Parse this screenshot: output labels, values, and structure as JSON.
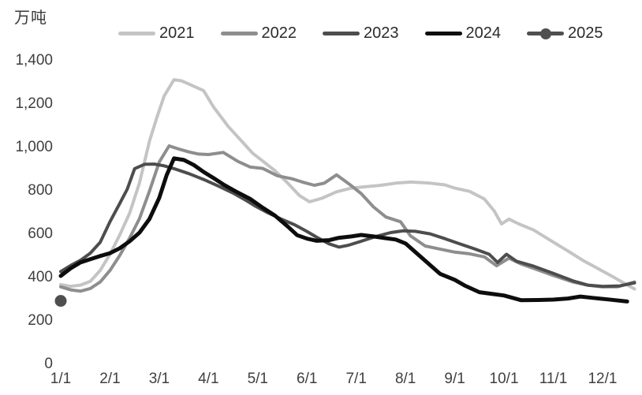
{
  "page": {
    "background": "#ffffff",
    "text_color": "#3a3a3a"
  },
  "chart_data": {
    "type": "line",
    "title": "",
    "unit_label": "万吨",
    "grid": false,
    "legend_position": "top",
    "x_unit": "month_of_year (1 = 1/1, decimals = fraction of month)",
    "x_axis": {
      "ticks": [
        "1/1",
        "2/1",
        "3/1",
        "4/1",
        "5/1",
        "6/1",
        "7/1",
        "8/1",
        "9/1",
        "10/1",
        "11/1",
        "12/1"
      ]
    },
    "y_axis": {
      "range": [
        0,
        1400
      ],
      "ticks": [
        {
          "value": 0,
          "label": "0"
        },
        {
          "value": 200,
          "label": "200"
        },
        {
          "value": 400,
          "label": "400"
        },
        {
          "value": 600,
          "label": "600"
        },
        {
          "value": 800,
          "label": "800"
        },
        {
          "value": 1000,
          "label": "1,000"
        },
        {
          "value": 1200,
          "label": "1,200"
        },
        {
          "value": 1400,
          "label": "1,400"
        }
      ]
    },
    "series": [
      {
        "name": "2021",
        "color": "#c4c4c4",
        "line_width": 4,
        "marker": "none",
        "points": [
          [
            1,
            360
          ],
          [
            1.2,
            352
          ],
          [
            1.4,
            358
          ],
          [
            1.6,
            375
          ],
          [
            1.8,
            425
          ],
          [
            2,
            500
          ],
          [
            2.2,
            590
          ],
          [
            2.4,
            690
          ],
          [
            2.6,
            830
          ],
          [
            2.8,
            1020
          ],
          [
            2.95,
            1130
          ],
          [
            3.1,
            1230
          ],
          [
            3.3,
            1305
          ],
          [
            3.45,
            1300
          ],
          [
            3.6,
            1285
          ],
          [
            3.9,
            1255
          ],
          [
            4.1,
            1180
          ],
          [
            4.4,
            1090
          ],
          [
            4.7,
            1015
          ],
          [
            4.9,
            965
          ],
          [
            5.1,
            930
          ],
          [
            5.35,
            885
          ],
          [
            5.6,
            830
          ],
          [
            5.85,
            770
          ],
          [
            6.05,
            742
          ],
          [
            6.3,
            758
          ],
          [
            6.6,
            788
          ],
          [
            6.9,
            805
          ],
          [
            7.2,
            812
          ],
          [
            7.5,
            818
          ],
          [
            7.8,
            828
          ],
          [
            8.1,
            833
          ],
          [
            8.5,
            828
          ],
          [
            8.8,
            820
          ],
          [
            9,
            805
          ],
          [
            9.3,
            790
          ],
          [
            9.6,
            755
          ],
          [
            9.8,
            700
          ],
          [
            9.95,
            640
          ],
          [
            10.1,
            662
          ],
          [
            10.3,
            640
          ],
          [
            10.6,
            612
          ],
          [
            11,
            556
          ],
          [
            11.3,
            515
          ],
          [
            11.6,
            472
          ],
          [
            11.9,
            435
          ],
          [
            12.2,
            398
          ],
          [
            12.45,
            365
          ],
          [
            12.65,
            340
          ]
        ]
      },
      {
        "name": "2022",
        "color": "#8e8e8e",
        "line_width": 4,
        "marker": "none",
        "points": [
          [
            1,
            350
          ],
          [
            1.2,
            336
          ],
          [
            1.4,
            330
          ],
          [
            1.6,
            342
          ],
          [
            1.8,
            372
          ],
          [
            2,
            425
          ],
          [
            2.2,
            495
          ],
          [
            2.4,
            575
          ],
          [
            2.6,
            665
          ],
          [
            2.8,
            790
          ],
          [
            3,
            925
          ],
          [
            3.2,
            1000
          ],
          [
            3.4,
            985
          ],
          [
            3.6,
            972
          ],
          [
            3.8,
            962
          ],
          [
            4,
            960
          ],
          [
            4.3,
            970
          ],
          [
            4.6,
            928
          ],
          [
            4.85,
            902
          ],
          [
            5.1,
            896
          ],
          [
            5.4,
            862
          ],
          [
            5.7,
            848
          ],
          [
            5.95,
            830
          ],
          [
            6.15,
            818
          ],
          [
            6.35,
            828
          ],
          [
            6.6,
            866
          ],
          [
            6.85,
            825
          ],
          [
            7.1,
            780
          ],
          [
            7.35,
            718
          ],
          [
            7.6,
            672
          ],
          [
            7.9,
            650
          ],
          [
            8.1,
            585
          ],
          [
            8.4,
            538
          ],
          [
            8.7,
            524
          ],
          [
            9,
            510
          ],
          [
            9.3,
            502
          ],
          [
            9.6,
            488
          ],
          [
            9.85,
            447
          ],
          [
            10.1,
            482
          ],
          [
            10.35,
            455
          ],
          [
            10.6,
            435
          ],
          [
            11,
            402
          ],
          [
            11.4,
            372
          ],
          [
            11.7,
            357
          ],
          [
            12,
            350
          ],
          [
            12.3,
            350
          ],
          [
            12.65,
            372
          ]
        ]
      },
      {
        "name": "2023",
        "color": "#4d4d4d",
        "line_width": 4,
        "marker": "none",
        "points": [
          [
            1,
            420
          ],
          [
            1.2,
            448
          ],
          [
            1.4,
            472
          ],
          [
            1.6,
            505
          ],
          [
            1.8,
            555
          ],
          [
            2,
            650
          ],
          [
            2.2,
            735
          ],
          [
            2.35,
            800
          ],
          [
            2.5,
            895
          ],
          [
            2.7,
            915
          ],
          [
            2.9,
            916
          ],
          [
            3.1,
            908
          ],
          [
            3.3,
            895
          ],
          [
            3.6,
            872
          ],
          [
            3.9,
            845
          ],
          [
            4.2,
            815
          ],
          [
            4.5,
            782
          ],
          [
            4.75,
            750
          ],
          [
            4.95,
            722
          ],
          [
            5.2,
            692
          ],
          [
            5.5,
            660
          ],
          [
            5.75,
            636
          ],
          [
            6,
            605
          ],
          [
            6.2,
            578
          ],
          [
            6.45,
            548
          ],
          [
            6.65,
            533
          ],
          [
            6.85,
            542
          ],
          [
            7.1,
            560
          ],
          [
            7.4,
            582
          ],
          [
            7.7,
            600
          ],
          [
            7.95,
            608
          ],
          [
            8.2,
            606
          ],
          [
            8.5,
            594
          ],
          [
            8.8,
            572
          ],
          [
            9.1,
            548
          ],
          [
            9.4,
            525
          ],
          [
            9.7,
            500
          ],
          [
            9.87,
            462
          ],
          [
            10.05,
            500
          ],
          [
            10.25,
            468
          ],
          [
            10.6,
            445
          ],
          [
            11,
            412
          ],
          [
            11.4,
            377
          ],
          [
            11.7,
            358
          ],
          [
            12,
            352
          ],
          [
            12.35,
            354
          ],
          [
            12.65,
            368
          ]
        ]
      },
      {
        "name": "2024",
        "color": "#0d0d0d",
        "line_width": 5,
        "marker": "none",
        "points": [
          [
            1,
            400
          ],
          [
            1.2,
            435
          ],
          [
            1.4,
            462
          ],
          [
            1.6,
            477
          ],
          [
            1.8,
            492
          ],
          [
            2,
            505
          ],
          [
            2.2,
            528
          ],
          [
            2.4,
            560
          ],
          [
            2.6,
            600
          ],
          [
            2.8,
            662
          ],
          [
            3,
            760
          ],
          [
            3.15,
            865
          ],
          [
            3.3,
            942
          ],
          [
            3.5,
            935
          ],
          [
            3.7,
            912
          ],
          [
            3.9,
            880
          ],
          [
            4.1,
            852
          ],
          [
            4.3,
            822
          ],
          [
            4.55,
            790
          ],
          [
            4.85,
            755
          ],
          [
            5.1,
            715
          ],
          [
            5.35,
            678
          ],
          [
            5.6,
            630
          ],
          [
            5.8,
            588
          ],
          [
            6,
            572
          ],
          [
            6.2,
            562
          ],
          [
            6.45,
            565
          ],
          [
            6.65,
            576
          ],
          [
            6.9,
            582
          ],
          [
            7.1,
            589
          ],
          [
            7.35,
            582
          ],
          [
            7.6,
            574
          ],
          [
            7.8,
            568
          ],
          [
            8,
            550
          ],
          [
            8.3,
            490
          ],
          [
            8.7,
            410
          ],
          [
            9,
            382
          ],
          [
            9.2,
            356
          ],
          [
            9.5,
            325
          ],
          [
            9.8,
            316
          ],
          [
            10,
            310
          ],
          [
            10.35,
            288
          ],
          [
            10.7,
            289
          ],
          [
            11,
            291
          ],
          [
            11.3,
            296
          ],
          [
            11.55,
            305
          ],
          [
            11.8,
            299
          ],
          [
            12.1,
            292
          ],
          [
            12.5,
            282
          ]
        ]
      },
      {
        "name": "2025",
        "color": "#4f4f4f",
        "line_width": 5,
        "marker": "circle",
        "points": [
          [
            1,
            285
          ]
        ]
      }
    ]
  }
}
